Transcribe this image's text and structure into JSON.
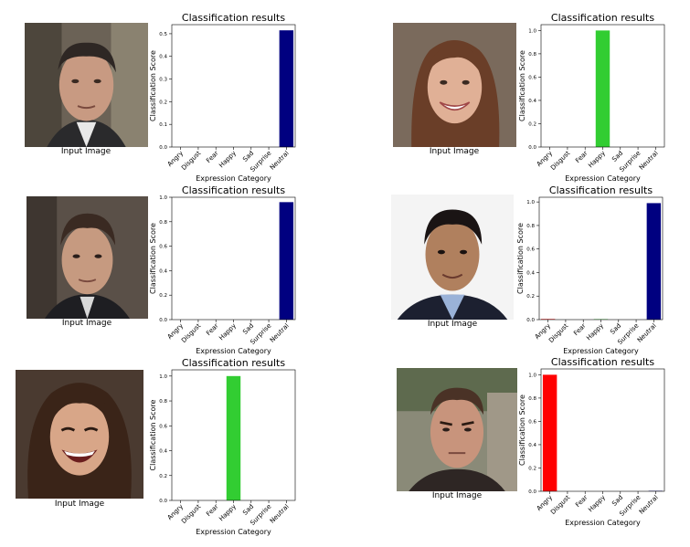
{
  "caption": "Input Image",
  "chart_common": {
    "title": "Classification results",
    "xlabel": "Expression Category",
    "ylabel": "Classification Score",
    "categories": [
      "Angry",
      "Disgust",
      "Fear",
      "Happy",
      "Sad",
      "Surprise",
      "Neutral"
    ],
    "colors": {
      "Angry": "#ff0000",
      "Happy": "#32cd32",
      "Neutral": "#000080"
    }
  },
  "chart_data": [
    {
      "type": "bar",
      "title": "Classification results",
      "xlabel": "Expression Category",
      "ylabel": "Classification Score",
      "categories": [
        "Angry",
        "Disgust",
        "Fear",
        "Happy",
        "Sad",
        "Surprise",
        "Neutral"
      ],
      "values": [
        0,
        0,
        0,
        0,
        0,
        0,
        0.515
      ],
      "ylim": [
        0,
        0.54
      ],
      "yticks": [
        "0.0",
        "0.1",
        "0.2",
        "0.3",
        "0.4",
        "0.5"
      ],
      "ytick_values": [
        0,
        0.1,
        0.2,
        0.3,
        0.4,
        0.5
      ],
      "bar_colors": [
        "#ff0000",
        "#808080",
        "#000000",
        "#32cd32",
        "#0000ff",
        "#ffa500",
        "#000080"
      ],
      "grid": false
    },
    {
      "type": "bar",
      "title": "Classification results",
      "xlabel": "Expression Category",
      "ylabel": "Classification Score",
      "categories": [
        "Angry",
        "Disgust",
        "Fear",
        "Happy",
        "Sad",
        "Surprise",
        "Neutral"
      ],
      "values": [
        0,
        0,
        0,
        1.0,
        0,
        0,
        0
      ],
      "ylim": [
        0,
        1.05
      ],
      "yticks": [
        "0.0",
        "0.2",
        "0.4",
        "0.6",
        "0.8",
        "1.0"
      ],
      "ytick_values": [
        0,
        0.2,
        0.4,
        0.6,
        0.8,
        1.0
      ],
      "bar_colors": [
        "#ff0000",
        "#808080",
        "#000000",
        "#32cd32",
        "#0000ff",
        "#ffa500",
        "#000080"
      ],
      "grid": false
    },
    {
      "type": "bar",
      "title": "Classification results",
      "xlabel": "Expression Category",
      "ylabel": "Classification Score",
      "categories": [
        "Angry",
        "Disgust",
        "Fear",
        "Happy",
        "Sad",
        "Surprise",
        "Neutral"
      ],
      "values": [
        0,
        0,
        0,
        0,
        0,
        0,
        0.96
      ],
      "ylim": [
        0,
        1.0
      ],
      "yticks": [
        "0.0",
        "0.2",
        "0.4",
        "0.6",
        "0.8",
        "1.0"
      ],
      "ytick_values": [
        0,
        0.2,
        0.4,
        0.6,
        0.8,
        1.0
      ],
      "bar_colors": [
        "#ff0000",
        "#808080",
        "#000000",
        "#32cd32",
        "#0000ff",
        "#ffa500",
        "#000080"
      ],
      "grid": false
    },
    {
      "type": "bar",
      "title": "Classification results",
      "xlabel": "Expression Category",
      "ylabel": "Classification Score",
      "categories": [
        "Angry",
        "Disgust",
        "Fear",
        "Happy",
        "Sad",
        "Surprise",
        "Neutral"
      ],
      "values": [
        0.005,
        0,
        0,
        0.004,
        0,
        0,
        0.99
      ],
      "ylim": [
        0,
        1.04
      ],
      "yticks": [
        "0.0",
        "0.2",
        "0.4",
        "0.6",
        "0.8",
        "1.0"
      ],
      "ytick_values": [
        0,
        0.2,
        0.4,
        0.6,
        0.8,
        1.0
      ],
      "bar_colors": [
        "#ff0000",
        "#808080",
        "#000000",
        "#32cd32",
        "#0000ff",
        "#ffa500",
        "#000080"
      ],
      "grid": false
    },
    {
      "type": "bar",
      "title": "Classification results",
      "xlabel": "Expression Category",
      "ylabel": "Classification Score",
      "categories": [
        "Angry",
        "Disgust",
        "Fear",
        "Happy",
        "Sad",
        "Surprise",
        "Neutral"
      ],
      "values": [
        0,
        0,
        0,
        1.0,
        0,
        0,
        0
      ],
      "ylim": [
        0,
        1.05
      ],
      "yticks": [
        "0.0",
        "0.2",
        "0.4",
        "0.6",
        "0.8",
        "1.0"
      ],
      "ytick_values": [
        0,
        0.2,
        0.4,
        0.6,
        0.8,
        1.0
      ],
      "bar_colors": [
        "#ff0000",
        "#808080",
        "#000000",
        "#32cd32",
        "#0000ff",
        "#ffa500",
        "#000080"
      ],
      "grid": false
    },
    {
      "type": "bar",
      "title": "Classification results",
      "xlabel": "Expression Category",
      "ylabel": "Classification Score",
      "categories": [
        "Angry",
        "Disgust",
        "Fear",
        "Happy",
        "Sad",
        "Surprise",
        "Neutral"
      ],
      "values": [
        1.0,
        0,
        0,
        0,
        0,
        0,
        0.004
      ],
      "ylim": [
        0,
        1.05
      ],
      "yticks": [
        "0.0",
        "0.2",
        "0.4",
        "0.6",
        "0.8",
        "1.0"
      ],
      "ytick_values": [
        0,
        0.2,
        0.4,
        0.6,
        0.8,
        1.0
      ],
      "bar_colors": [
        "#ff0000",
        "#808080",
        "#000000",
        "#32cd32",
        "#0000ff",
        "#ffa500",
        "#000080"
      ],
      "grid": false
    }
  ]
}
